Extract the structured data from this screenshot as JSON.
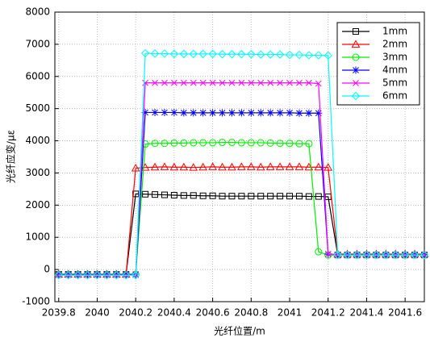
{
  "chart_data": {
    "type": "line",
    "x_label": "光纤位置/m",
    "y_label": "光纤应变/με",
    "x": [
      2039.8,
      2039.85,
      2039.9,
      2039.95,
      2040,
      2040.05,
      2040.1,
      2040.15,
      2040.2,
      2040.25,
      2040.3,
      2040.35,
      2040.4,
      2040.45,
      2040.5,
      2040.55,
      2040.6,
      2040.65,
      2040.7,
      2040.75,
      2040.8,
      2040.85,
      2040.9,
      2040.95,
      2041,
      2041.05,
      2041.1,
      2041.15,
      2041.2,
      2041.25,
      2041.3,
      2041.35,
      2041.4,
      2041.45,
      2041.5,
      2041.55,
      2041.6,
      2041.65,
      2041.7
    ],
    "series": [
      {
        "name": "1mm",
        "color": "#000000",
        "marker": "square",
        "values": [
          -150,
          -150,
          -150,
          -150,
          -150,
          -150,
          -150,
          -150,
          2350,
          2340,
          2330,
          2320,
          2310,
          2300,
          2300,
          2290,
          2290,
          2280,
          2280,
          2280,
          2280,
          2280,
          2280,
          2280,
          2280,
          2280,
          2270,
          2270,
          2260,
          450,
          450,
          450,
          450,
          450,
          450,
          450,
          450,
          450,
          450
        ]
      },
      {
        "name": "2mm",
        "color": "#ff0000",
        "marker": "triangle",
        "values": [
          -150,
          -150,
          -150,
          -150,
          -150,
          -150,
          -150,
          -150,
          3150,
          3170,
          3180,
          3190,
          3180,
          3180,
          3170,
          3180,
          3190,
          3180,
          3180,
          3190,
          3190,
          3180,
          3190,
          3190,
          3190,
          3190,
          3180,
          3180,
          3170,
          480,
          480,
          480,
          480,
          480,
          480,
          480,
          480,
          480,
          480
        ]
      },
      {
        "name": "3mm",
        "color": "#00ee00",
        "marker": "circle",
        "values": [
          -150,
          -150,
          -150,
          -150,
          -150,
          -150,
          -150,
          -150,
          -150,
          3900,
          3920,
          3920,
          3930,
          3930,
          3940,
          3940,
          3940,
          3950,
          3950,
          3940,
          3940,
          3940,
          3930,
          3920,
          3920,
          3910,
          3910,
          550,
          450,
          450,
          450,
          450,
          450,
          450,
          450,
          450,
          450,
          450,
          450
        ]
      },
      {
        "name": "4mm",
        "color": "#0000ff",
        "marker": "asterisk",
        "values": [
          -150,
          -150,
          -150,
          -150,
          -150,
          -150,
          -150,
          -150,
          -150,
          4880,
          4880,
          4880,
          4880,
          4870,
          4870,
          4870,
          4870,
          4870,
          4870,
          4870,
          4870,
          4870,
          4870,
          4870,
          4870,
          4860,
          4860,
          4860,
          480,
          460,
          460,
          460,
          460,
          460,
          460,
          460,
          460,
          460,
          460
        ]
      },
      {
        "name": "5mm",
        "color": "#ff00ff",
        "marker": "x",
        "values": [
          -170,
          -170,
          -170,
          -170,
          -170,
          -170,
          -170,
          -170,
          -170,
          5800,
          5800,
          5800,
          5800,
          5800,
          5800,
          5800,
          5800,
          5800,
          5800,
          5800,
          5800,
          5800,
          5800,
          5800,
          5800,
          5800,
          5800,
          5780,
          480,
          450,
          450,
          450,
          450,
          450,
          450,
          450,
          450,
          450,
          450
        ]
      },
      {
        "name": "6mm",
        "color": "#00ffff",
        "marker": "diamond",
        "values": [
          -180,
          -180,
          -180,
          -180,
          -180,
          -180,
          -180,
          -180,
          -180,
          6720,
          6710,
          6710,
          6700,
          6700,
          6700,
          6700,
          6700,
          6690,
          6690,
          6690,
          6690,
          6680,
          6680,
          6680,
          6670,
          6670,
          6660,
          6660,
          6650,
          450,
          450,
          450,
          450,
          450,
          450,
          450,
          450,
          450,
          450
        ]
      }
    ],
    "xlim": [
      2039.78,
      2041.7
    ],
    "xticks": [
      2039.8,
      2040,
      2040.2,
      2040.4,
      2040.6,
      2040.8,
      2041,
      2041.2,
      2041.4,
      2041.6
    ],
    "ylim": [
      -1000,
      8000
    ],
    "yticks": [
      -1000,
      0,
      1000,
      2000,
      3000,
      4000,
      5000,
      6000,
      7000,
      8000
    ],
    "grid": true,
    "legend": "upper right"
  }
}
